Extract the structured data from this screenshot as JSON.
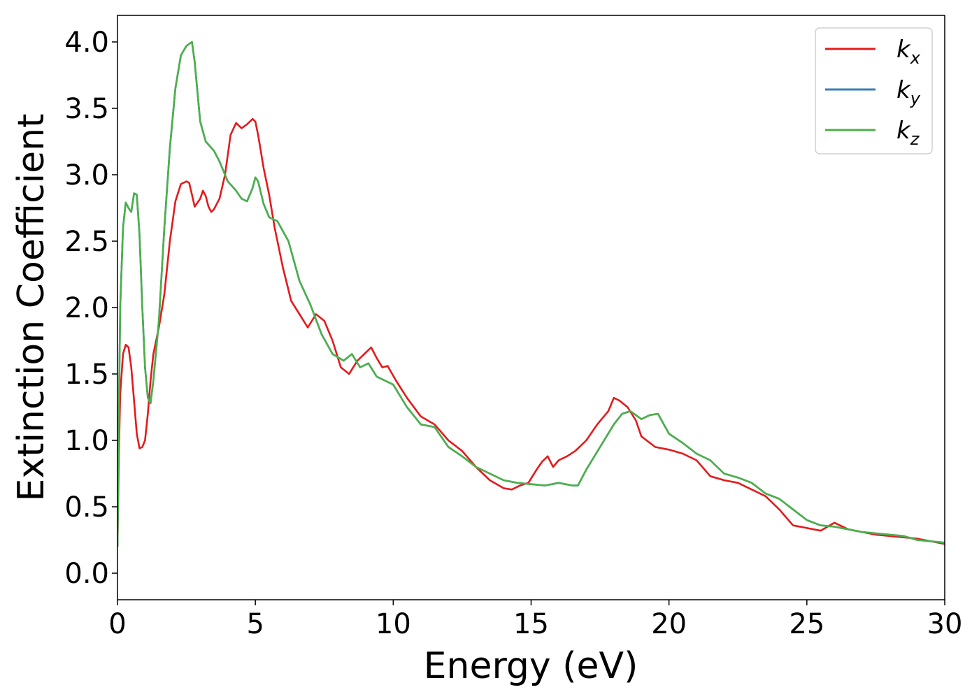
{
  "chart_data": {
    "type": "line",
    "title": "",
    "xlabel": "Energy (eV)",
    "ylabel": "Extinction Coefficient",
    "xlim": [
      0,
      30
    ],
    "ylim": [
      -0.2,
      4.2
    ],
    "xticks": [
      0,
      5,
      10,
      15,
      20,
      25,
      30
    ],
    "xtick_labels": [
      "0",
      "5",
      "10",
      "15",
      "20",
      "25",
      "30"
    ],
    "yticks": [
      0.0,
      0.5,
      1.0,
      1.5,
      2.0,
      2.5,
      3.0,
      3.5,
      4.0
    ],
    "ytick_labels": [
      "0.0",
      "0.5",
      "1.0",
      "1.5",
      "2.0",
      "2.5",
      "3.0",
      "3.5",
      "4.0"
    ],
    "grid": false,
    "legend_position": "top-right",
    "series": [
      {
        "name": "k_x",
        "legend_base": "k",
        "legend_sub": "x",
        "color": "#e41a1c",
        "x": [
          0,
          0.05,
          0.1,
          0.2,
          0.3,
          0.4,
          0.5,
          0.6,
          0.7,
          0.8,
          0.9,
          1.0,
          1.1,
          1.2,
          1.3,
          1.5,
          1.7,
          1.9,
          2.1,
          2.3,
          2.5,
          2.6,
          2.7,
          2.8,
          3.0,
          3.1,
          3.2,
          3.3,
          3.4,
          3.5,
          3.7,
          3.9,
          4.1,
          4.3,
          4.5,
          4.7,
          4.9,
          5.0,
          5.1,
          5.3,
          5.5,
          5.7,
          6.0,
          6.3,
          6.6,
          6.9,
          7.2,
          7.5,
          7.8,
          8.1,
          8.4,
          8.7,
          9.0,
          9.2,
          9.4,
          9.6,
          9.8,
          10.1,
          10.5,
          11.0,
          11.5,
          12.0,
          12.5,
          13.0,
          13.5,
          14.0,
          14.3,
          14.6,
          14.9,
          15.2,
          15.4,
          15.6,
          15.8,
          16.0,
          16.3,
          16.6,
          17.0,
          17.4,
          17.8,
          18.0,
          18.2,
          18.5,
          18.8,
          19.0,
          19.5,
          20.0,
          20.5,
          21.0,
          21.5,
          22.0,
          22.5,
          23.0,
          23.5,
          24.0,
          24.5,
          25.0,
          25.5,
          26.0,
          26.5,
          27.0,
          27.5,
          28.0,
          28.5,
          29.0,
          29.5,
          30.0
        ],
        "y": [
          0.2,
          0.9,
          1.35,
          1.65,
          1.72,
          1.7,
          1.55,
          1.3,
          1.05,
          0.94,
          0.95,
          1.0,
          1.2,
          1.45,
          1.65,
          1.85,
          2.1,
          2.5,
          2.8,
          2.93,
          2.95,
          2.94,
          2.85,
          2.76,
          2.82,
          2.88,
          2.84,
          2.76,
          2.72,
          2.74,
          2.82,
          3.0,
          3.3,
          3.39,
          3.35,
          3.38,
          3.42,
          3.4,
          3.3,
          3.05,
          2.85,
          2.6,
          2.3,
          2.05,
          1.95,
          1.85,
          1.95,
          1.9,
          1.75,
          1.55,
          1.5,
          1.6,
          1.66,
          1.7,
          1.62,
          1.55,
          1.56,
          1.45,
          1.32,
          1.18,
          1.12,
          1.0,
          0.92,
          0.8,
          0.7,
          0.64,
          0.63,
          0.66,
          0.68,
          0.78,
          0.84,
          0.88,
          0.8,
          0.85,
          0.88,
          0.92,
          1.0,
          1.12,
          1.22,
          1.32,
          1.3,
          1.25,
          1.15,
          1.03,
          0.95,
          0.93,
          0.9,
          0.85,
          0.73,
          0.7,
          0.68,
          0.63,
          0.58,
          0.48,
          0.36,
          0.34,
          0.32,
          0.38,
          0.33,
          0.31,
          0.29,
          0.28,
          0.27,
          0.26,
          0.24,
          0.22
        ]
      },
      {
        "name": "k_y",
        "legend_base": "k",
        "legend_sub": "y",
        "color": "#377eb8",
        "x": [
          0,
          0.05,
          0.1,
          0.2,
          0.3,
          0.4,
          0.5,
          0.6,
          0.7,
          0.8,
          0.9,
          1.0,
          1.1,
          1.2,
          1.3,
          1.5,
          1.7,
          1.9,
          2.1,
          2.3,
          2.5,
          2.7,
          2.8,
          3.0,
          3.2,
          3.5,
          3.7,
          4.0,
          4.3,
          4.5,
          4.7,
          4.9,
          5.0,
          5.1,
          5.3,
          5.5,
          5.8,
          6.2,
          6.6,
          7.0,
          7.4,
          7.8,
          8.2,
          8.5,
          8.8,
          9.1,
          9.4,
          9.7,
          10.0,
          10.5,
          11.0,
          11.5,
          12.0,
          12.5,
          13.0,
          13.5,
          14.0,
          14.5,
          15.0,
          15.5,
          16.0,
          16.5,
          16.7,
          17.0,
          17.5,
          18.0,
          18.3,
          18.6,
          19.0,
          19.3,
          19.6,
          20.0,
          20.5,
          21.0,
          21.5,
          22.0,
          22.5,
          23.0,
          23.5,
          24.0,
          24.5,
          25.0,
          25.5,
          26.0,
          26.5,
          27.0,
          27.5,
          28.0,
          28.5,
          29.0,
          29.5,
          30.0
        ],
        "y": [
          0.2,
          1.2,
          2.0,
          2.6,
          2.79,
          2.75,
          2.72,
          2.86,
          2.85,
          2.55,
          2.0,
          1.55,
          1.32,
          1.28,
          1.45,
          1.9,
          2.6,
          3.2,
          3.65,
          3.9,
          3.97,
          4.0,
          3.85,
          3.4,
          3.25,
          3.18,
          3.1,
          2.95,
          2.88,
          2.82,
          2.8,
          2.9,
          2.98,
          2.95,
          2.78,
          2.68,
          2.65,
          2.5,
          2.2,
          2.02,
          1.8,
          1.65,
          1.6,
          1.65,
          1.55,
          1.58,
          1.48,
          1.45,
          1.42,
          1.25,
          1.12,
          1.1,
          0.95,
          0.88,
          0.8,
          0.75,
          0.7,
          0.68,
          0.67,
          0.66,
          0.68,
          0.66,
          0.66,
          0.78,
          0.95,
          1.12,
          1.2,
          1.22,
          1.16,
          1.19,
          1.2,
          1.05,
          0.98,
          0.9,
          0.85,
          0.75,
          0.72,
          0.68,
          0.6,
          0.56,
          0.48,
          0.4,
          0.36,
          0.35,
          0.33,
          0.31,
          0.3,
          0.29,
          0.28,
          0.25,
          0.24,
          0.23
        ]
      },
      {
        "name": "k_z",
        "legend_base": "k",
        "legend_sub": "z",
        "color": "#4daf4a",
        "x": [
          0,
          0.05,
          0.1,
          0.2,
          0.3,
          0.4,
          0.5,
          0.6,
          0.7,
          0.8,
          0.9,
          1.0,
          1.1,
          1.2,
          1.3,
          1.5,
          1.7,
          1.9,
          2.1,
          2.3,
          2.5,
          2.7,
          2.8,
          3.0,
          3.2,
          3.5,
          3.7,
          4.0,
          4.3,
          4.5,
          4.7,
          4.9,
          5.0,
          5.1,
          5.3,
          5.5,
          5.8,
          6.2,
          6.6,
          7.0,
          7.4,
          7.8,
          8.2,
          8.5,
          8.8,
          9.1,
          9.4,
          9.7,
          10.0,
          10.5,
          11.0,
          11.5,
          12.0,
          12.5,
          13.0,
          13.5,
          14.0,
          14.5,
          15.0,
          15.5,
          16.0,
          16.5,
          16.7,
          17.0,
          17.5,
          18.0,
          18.3,
          18.6,
          19.0,
          19.3,
          19.6,
          20.0,
          20.5,
          21.0,
          21.5,
          22.0,
          22.5,
          23.0,
          23.5,
          24.0,
          24.5,
          25.0,
          25.5,
          26.0,
          26.5,
          27.0,
          27.5,
          28.0,
          28.5,
          29.0,
          29.5,
          30.0
        ],
        "y": [
          0.2,
          1.2,
          2.0,
          2.6,
          2.79,
          2.75,
          2.72,
          2.86,
          2.85,
          2.55,
          2.0,
          1.55,
          1.32,
          1.28,
          1.45,
          1.9,
          2.6,
          3.2,
          3.65,
          3.9,
          3.97,
          4.0,
          3.85,
          3.4,
          3.25,
          3.18,
          3.1,
          2.95,
          2.88,
          2.82,
          2.8,
          2.9,
          2.98,
          2.95,
          2.78,
          2.68,
          2.65,
          2.5,
          2.2,
          2.02,
          1.8,
          1.65,
          1.6,
          1.65,
          1.55,
          1.58,
          1.48,
          1.45,
          1.42,
          1.25,
          1.12,
          1.1,
          0.95,
          0.88,
          0.8,
          0.75,
          0.7,
          0.68,
          0.67,
          0.66,
          0.68,
          0.66,
          0.66,
          0.78,
          0.95,
          1.12,
          1.2,
          1.22,
          1.16,
          1.19,
          1.2,
          1.05,
          0.98,
          0.9,
          0.85,
          0.75,
          0.72,
          0.68,
          0.6,
          0.56,
          0.48,
          0.4,
          0.36,
          0.35,
          0.33,
          0.31,
          0.3,
          0.29,
          0.28,
          0.25,
          0.24,
          0.23
        ]
      }
    ]
  }
}
